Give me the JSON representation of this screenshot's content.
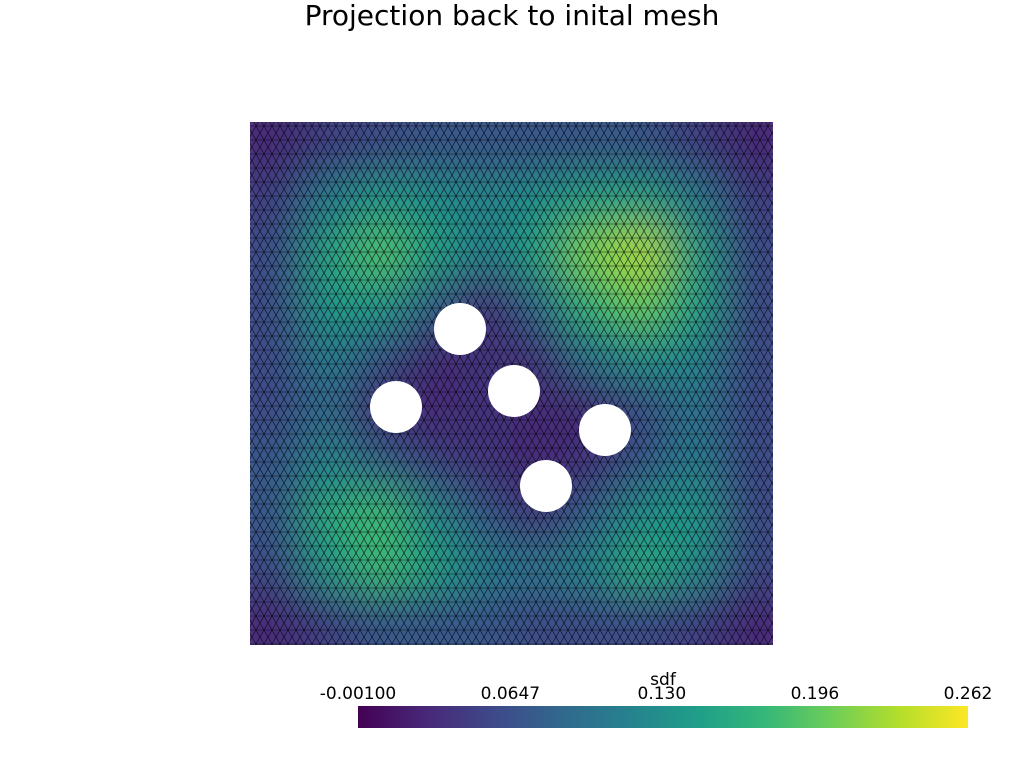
{
  "chart_data": {
    "type": "mesh",
    "title": "Projection back to inital mesh",
    "colorbar_title": "sdf",
    "clim": [
      -0.001,
      0.262
    ],
    "colorbar_ticks": [
      {
        "value": -0.001,
        "label": "-0.00100"
      },
      0.0647,
      {
        "value": 0.13,
        "label": "0.130"
      },
      {
        "value": 0.196,
        "label": "0.196"
      },
      {
        "value": 0.262,
        "label": "0.262"
      }
    ],
    "colormap": [
      "#440154",
      "#482878",
      "#3e4989",
      "#31688e",
      "#26828e",
      "#1f9e89",
      "#35b779",
      "#6ece58",
      "#b5de2b",
      "#fde725"
    ],
    "values": [
      [
        0.03,
        0.05,
        0.06,
        0.07,
        0.07,
        0.07,
        0.07,
        0.07,
        0.05,
        0.03
      ],
      [
        0.05,
        0.11,
        0.14,
        0.13,
        0.12,
        0.13,
        0.15,
        0.15,
        0.11,
        0.05
      ],
      [
        0.06,
        0.15,
        0.19,
        0.15,
        0.11,
        0.15,
        0.21,
        0.23,
        0.15,
        0.06
      ],
      [
        0.06,
        0.14,
        0.14,
        0.08,
        0.03,
        0.09,
        0.17,
        0.2,
        0.15,
        0.06
      ],
      [
        0.06,
        0.11,
        0.07,
        0.03,
        0.04,
        0.04,
        0.1,
        0.13,
        0.12,
        0.06
      ],
      [
        0.06,
        0.09,
        0.03,
        0.03,
        0.04,
        0.03,
        0.03,
        0.06,
        0.1,
        0.06
      ],
      [
        0.07,
        0.12,
        0.08,
        0.05,
        0.04,
        0.03,
        0.04,
        0.07,
        0.11,
        0.06
      ],
      [
        0.07,
        0.16,
        0.18,
        0.12,
        0.07,
        0.04,
        0.08,
        0.13,
        0.14,
        0.06
      ],
      [
        0.06,
        0.14,
        0.18,
        0.15,
        0.11,
        0.1,
        0.12,
        0.16,
        0.13,
        0.06
      ],
      [
        0.03,
        0.05,
        0.07,
        0.07,
        0.07,
        0.06,
        0.06,
        0.06,
        0.05,
        0.03
      ]
    ]
  }
}
